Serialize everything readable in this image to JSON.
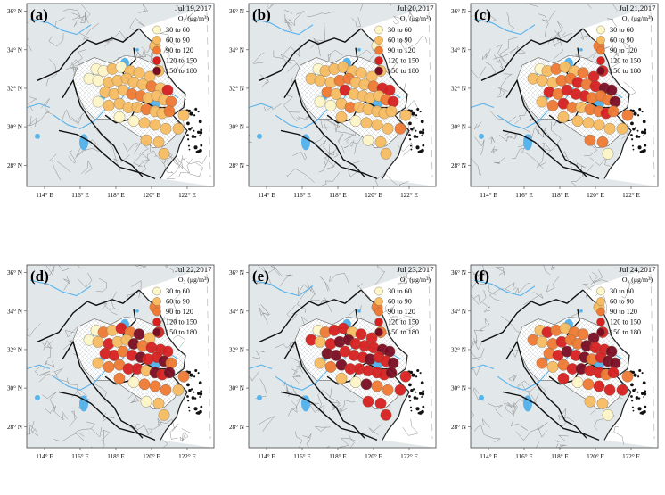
{
  "figure": {
    "legend_unit": "O₃ (μg/m³)",
    "legend_classes": [
      {
        "label": "30  to  60",
        "color": "#fdf6c8"
      },
      {
        "label": "60  to  90",
        "color": "#f7bc62"
      },
      {
        "label": "90  to  120",
        "color": "#ef7a33"
      },
      {
        "label": "120  to  150",
        "color": "#d72020"
      },
      {
        "label": "150  to  180",
        "color": "#7b0d23"
      }
    ],
    "lat_ticks": [
      "36° N",
      "34° N",
      "32° N",
      "30° N",
      "28° N"
    ],
    "lon_ticks": [
      "114° E",
      "116° E",
      "118° E",
      "120° E",
      "122° E"
    ],
    "colors": {
      "land": "#e2e7e9",
      "yrd_region": "#ffffff",
      "water": "#5ab4ec",
      "province_border": "#111111",
      "city_border": "#8c8c8c"
    }
  },
  "panels": [
    {
      "tag": "(a)",
      "date": "Jul 19,2017",
      "class_counts": {
        "30-60": 8,
        "60-90": 32,
        "90-120": 6,
        "120-150": 1,
        "150-180": 0
      }
    },
    {
      "tag": "(b)",
      "date": "Jul 20,2017",
      "class_counts": {
        "30-60": 6,
        "60-90": 30,
        "90-120": 7,
        "120-150": 4,
        "150-180": 0
      }
    },
    {
      "tag": "(c)",
      "date": "Jul 21,2017",
      "class_counts": {
        "30-60": 2,
        "60-90": 14,
        "90-120": 18,
        "120-150": 10,
        "150-180": 3
      }
    },
    {
      "tag": "(d)",
      "date": "Jul 22,2017",
      "class_counts": {
        "30-60": 4,
        "60-90": 10,
        "90-120": 13,
        "120-150": 14,
        "150-180": 6
      }
    },
    {
      "tag": "(e)",
      "date": "Jul 23,2017",
      "class_counts": {
        "30-60": 2,
        "60-90": 4,
        "90-120": 6,
        "120-150": 24,
        "150-180": 11
      }
    },
    {
      "tag": "(f)",
      "date": "Jul 24,2017",
      "class_counts": {
        "30-60": 2,
        "60-90": 7,
        "90-120": 14,
        "120-150": 16,
        "150-180": 8
      }
    }
  ]
}
